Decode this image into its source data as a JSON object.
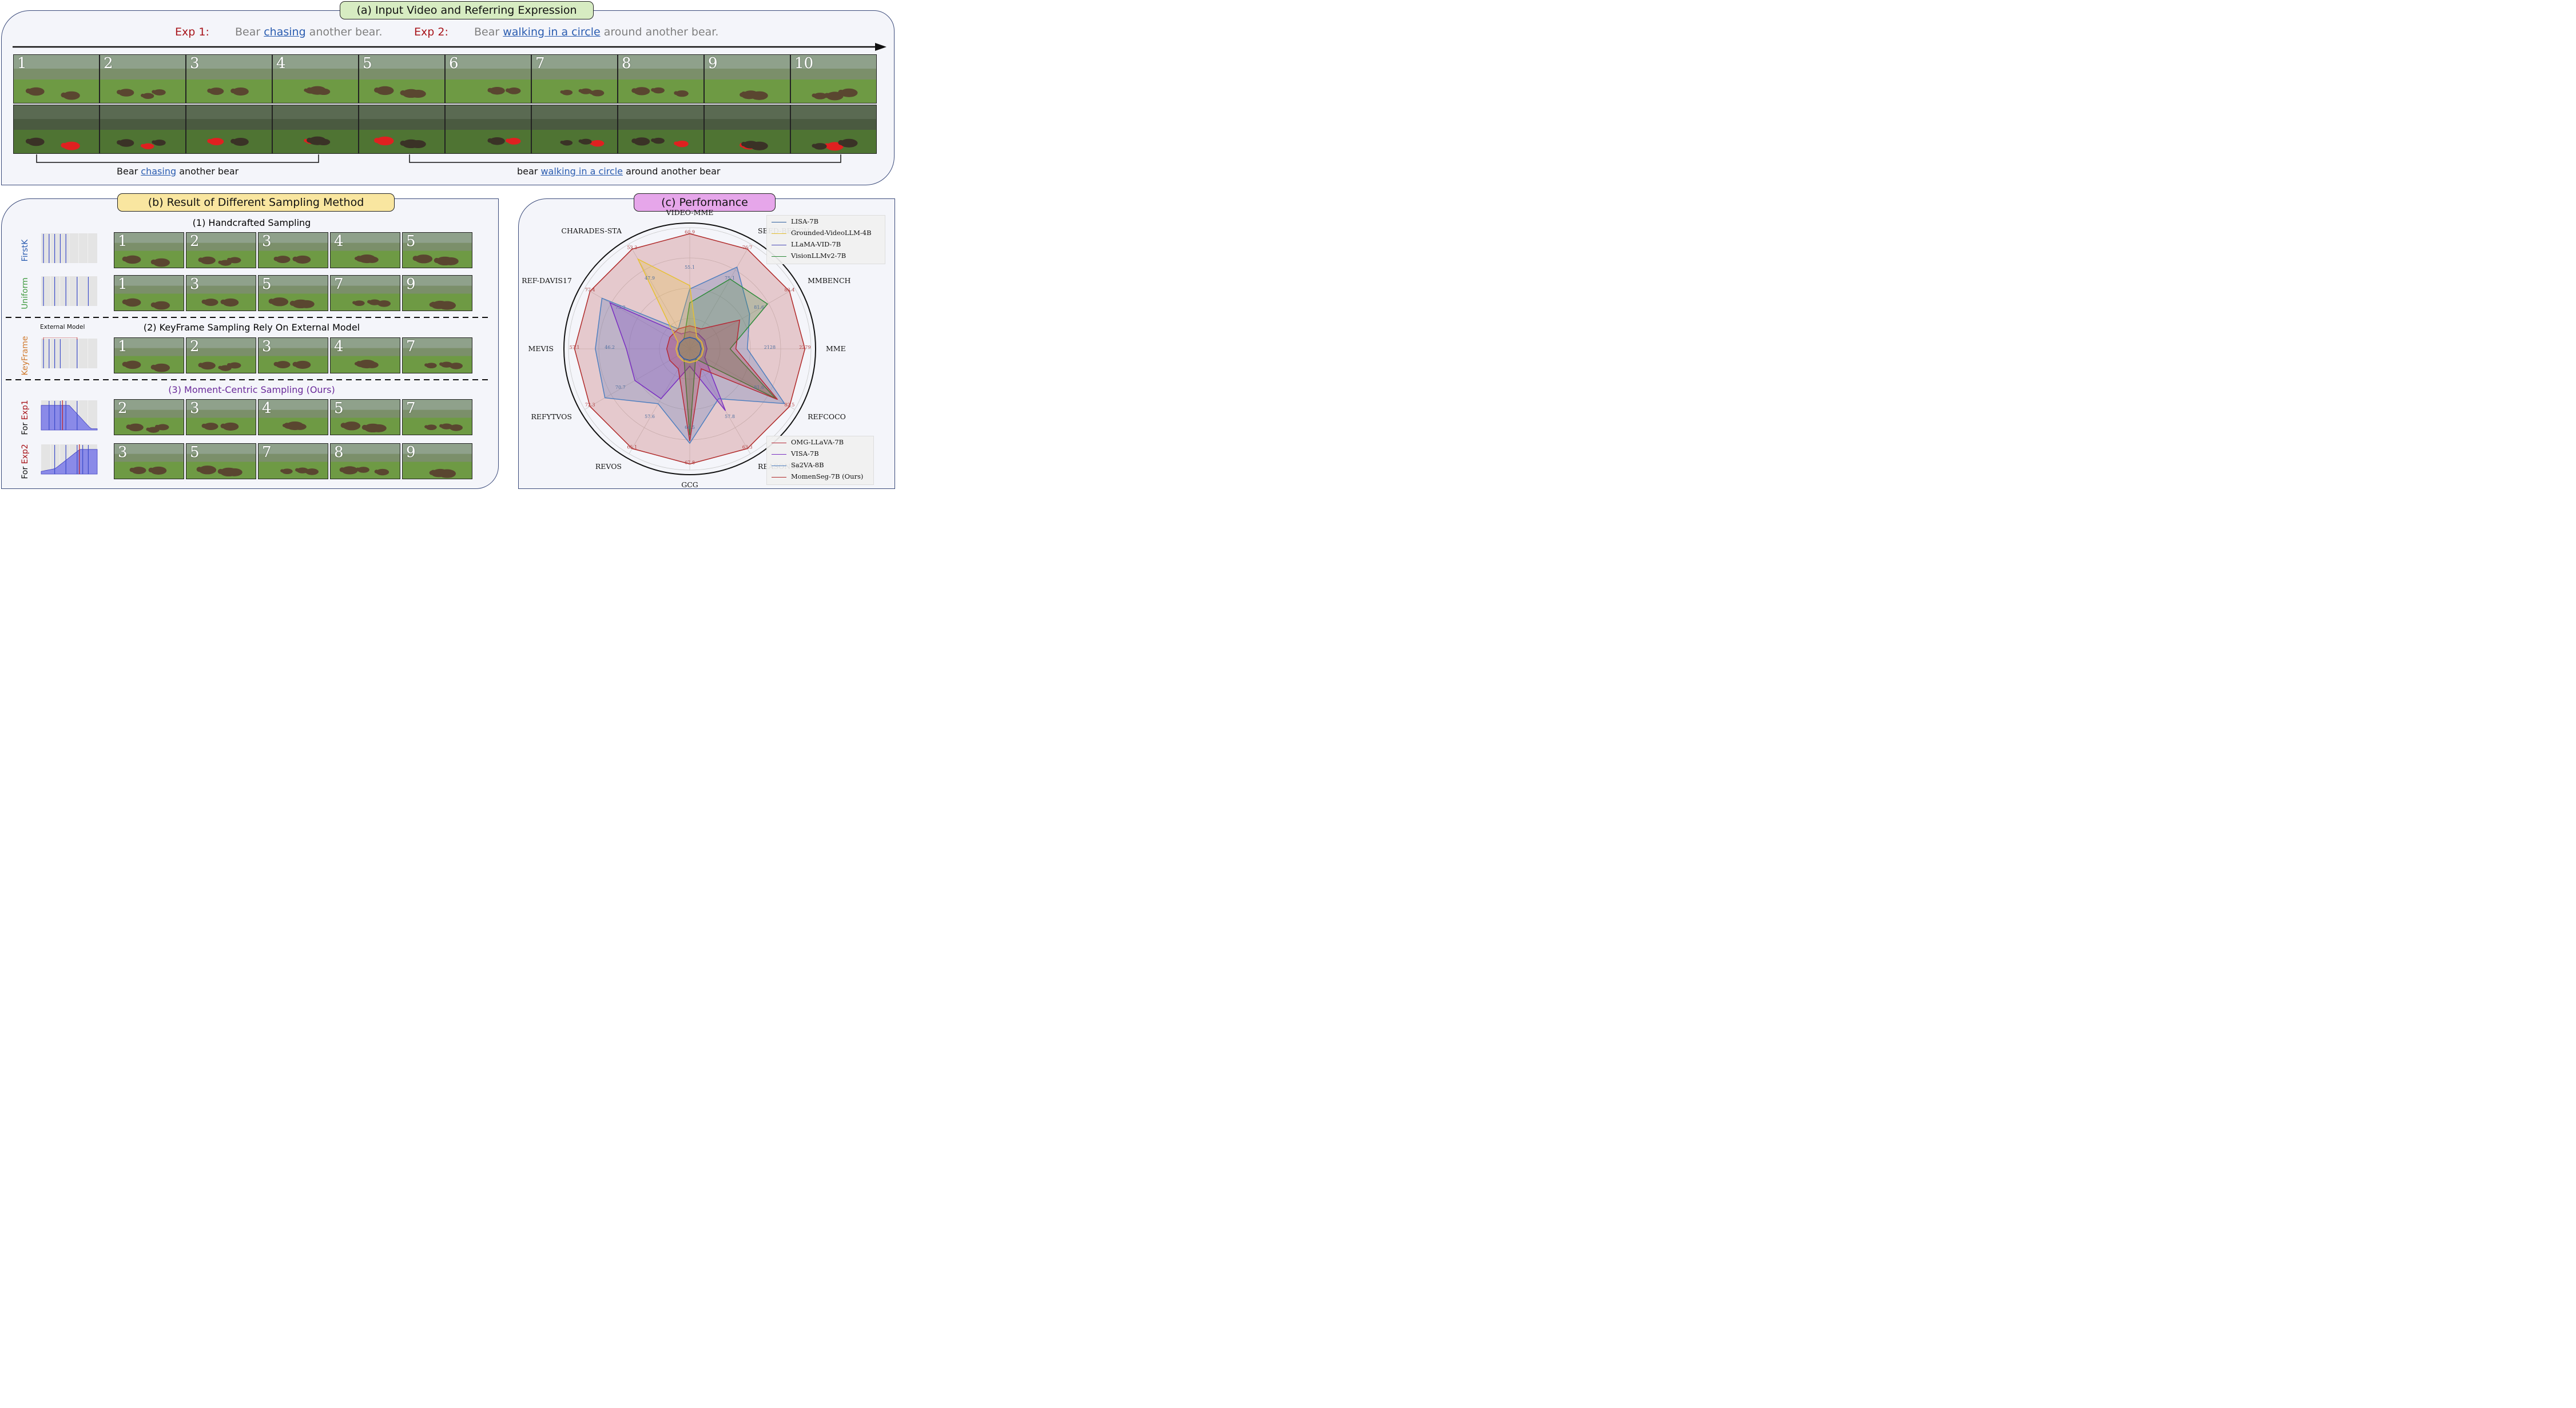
{
  "panel_a": {
    "title": "(a) Input Video and Referring Expression",
    "exp1_label": "Exp 1:",
    "exp1_pre": "Bear ",
    "exp1_hl": "chasing",
    "exp1_post": " another bear.",
    "exp2_label": "Exp 2:",
    "exp2_pre": "Bear ",
    "exp2_hl": "walking in a circle",
    "exp2_post": " around another bear.",
    "frame_numbers": [
      "1",
      "2",
      "3",
      "4",
      "5",
      "6",
      "7",
      "8",
      "9",
      "10"
    ],
    "brace1_pre": "Bear ",
    "brace1_hl": "chasing",
    "brace1_post": " another bear",
    "brace2_pre": "bear ",
    "brace2_hl": "walking in a circle",
    "brace2_post": " around another bear"
  },
  "panel_b": {
    "title": "(b) Result of Different Sampling Method",
    "sec1_title": "(1) Handcrafted Sampling",
    "sec2_title": "(2) KeyFrame Sampling Rely On External Model",
    "sec3_title": "(3) Moment-Centric Sampling (Ours)",
    "external_model": "External Model",
    "rows": [
      {
        "label": "FirstK",
        "label_color": "#2a5cb0",
        "frames": [
          "1",
          "2",
          "3",
          "4",
          "5"
        ]
      },
      {
        "label": "Uniform",
        "label_color": "#3f9a3f",
        "frames": [
          "1",
          "3",
          "5",
          "7",
          "9"
        ]
      },
      {
        "label": "KeyFrame",
        "label_color": "#d07a2e",
        "frames": [
          "1",
          "2",
          "3",
          "4",
          "7"
        ]
      },
      {
        "label_pre": "For ",
        "label": "Exp1",
        "label_color": "#a8141a",
        "frames": [
          "2",
          "3",
          "4",
          "5",
          "7"
        ]
      },
      {
        "label_pre": "For ",
        "label": "Exp2",
        "label_color": "#a8141a",
        "frames": [
          "3",
          "5",
          "7",
          "8",
          "9"
        ]
      }
    ]
  },
  "panel_c": {
    "title": "(c) Performance",
    "axes": [
      "VIDEO-MME",
      "SEED-BENCH",
      "MMBENCH",
      "MME",
      "REFCOCO",
      "REASONSEG",
      "GCG",
      "REVOS",
      "REFYTVOS",
      "MEVIS",
      "REF-DAVIS17",
      "CHARADES-STA"
    ],
    "tick_labels": [
      "60.9",
      "76.7",
      "83.4",
      "2279",
      "82.5",
      "63.3",
      "67.8",
      "65.1",
      "72.3",
      "57.1",
      "77.4",
      "53.3"
    ],
    "inner_ticks": [
      "55.1",
      "75.1",
      "81.6",
      "2128",
      "81.6",
      "57.8",
      "64.5",
      "57.6",
      "70.7",
      "46.2",
      "73.2",
      "47.9"
    ]
  },
  "chart_data": {
    "type": "radar",
    "title": "(c) Performance",
    "axes": [
      "Video-MME",
      "SEED-Bench",
      "MMBench",
      "MME",
      "RefCOCO",
      "ReasonSeg",
      "GCG",
      "ReVOS",
      "RefYTVOS",
      "MeViS",
      "Ref-DAVIS17",
      "Charades-STA"
    ],
    "series": [
      {
        "name": "LISA-7B",
        "color": "#2f5f9e",
        "values": [
          0.1,
          0.1,
          0.1,
          0.1,
          0.1,
          0.1,
          0.1,
          0.1,
          0.1,
          0.1,
          0.1,
          0.1
        ]
      },
      {
        "name": "Grounded-VideoLLM-4B",
        "color": "#e6c032",
        "values": [
          0.55,
          0.12,
          0.12,
          0.12,
          0.12,
          0.12,
          0.12,
          0.12,
          0.12,
          0.12,
          0.12,
          0.9
        ]
      },
      {
        "name": "LLaMA-VID-7B",
        "color": "#4b4bb8",
        "values": [
          0.1,
          0.1,
          0.1,
          0.1,
          0.1,
          0.1,
          0.1,
          0.1,
          0.1,
          0.1,
          0.1,
          0.1
        ]
      },
      {
        "name": "VisionLLMv2-7B",
        "color": "#2e8b3a",
        "values": [
          0.4,
          0.7,
          0.78,
          0.35,
          0.86,
          0.1,
          0.75,
          0.1,
          0.1,
          0.1,
          0.1,
          0.1
        ]
      },
      {
        "name": "OMG-LLaVA-7B",
        "color": "#b52a37",
        "values": [
          0.2,
          0.2,
          0.5,
          0.4,
          0.88,
          0.2,
          0.8,
          0.2,
          0.2,
          0.2,
          0.2,
          0.2
        ]
      },
      {
        "name": "VISA-7B",
        "color": "#7a2fc2",
        "values": [
          0.15,
          0.15,
          0.15,
          0.15,
          0.15,
          0.62,
          0.15,
          0.5,
          0.55,
          0.55,
          0.8,
          0.15
        ]
      },
      {
        "name": "Sa2VA-8B",
        "color": "#4f7fbf",
        "values": [
          0.52,
          0.82,
          0.6,
          0.5,
          0.95,
          0.5,
          0.82,
          0.55,
          0.85,
          0.82,
          0.88,
          0.2
        ]
      },
      {
        "name": "MomenSeg-7B (Ours)",
        "color": "#b02a2a",
        "values": [
          1,
          1,
          1,
          1,
          1,
          1,
          1,
          1,
          1,
          1,
          1,
          1
        ]
      }
    ]
  },
  "legend_top": [
    "LISA-7B",
    "Grounded-VideoLLM-4B",
    "LLaMA-VID-7B",
    "VisionLLMv2-7B"
  ],
  "legend_bottom": [
    "OMG-LLaVA-7B",
    "VISA-7B",
    "Sa2VA-8B",
    "MomenSeg-7B (Ours)"
  ]
}
